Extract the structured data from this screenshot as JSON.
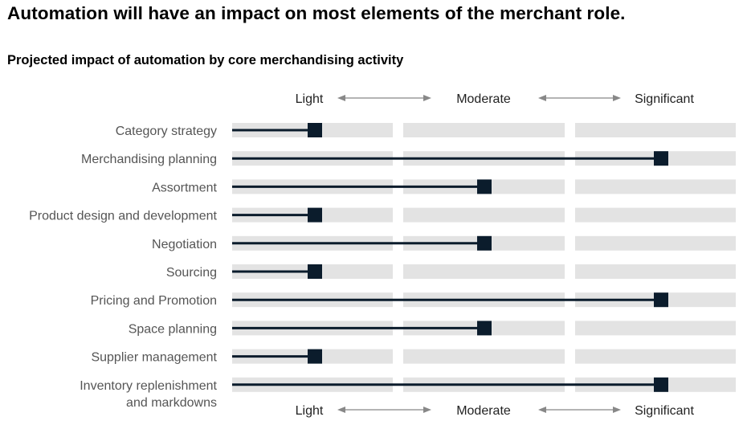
{
  "title": "Automation will have an impact on most elements of the merchant role.",
  "chart_data": {
    "type": "bar",
    "title": "Projected impact of automation by core merchandising activity",
    "scale_labels": [
      "Light",
      "Moderate",
      "Significant"
    ],
    "categories": [
      [
        "Category strategy"
      ],
      [
        "Merchandising planning"
      ],
      [
        "Assortment"
      ],
      [
        "Product design and development"
      ],
      [
        "Negotiation"
      ],
      [
        "Sourcing"
      ],
      [
        "Pricing and Promotion"
      ],
      [
        "Space planning"
      ],
      [
        "Supplier management"
      ],
      [
        "Inventory replenishment",
        "and markdowns"
      ]
    ],
    "values": [
      "Light",
      "Significant",
      "Moderate",
      "Light",
      "Moderate",
      "Light",
      "Significant",
      "Moderate",
      "Light",
      "Significant"
    ],
    "highlighted_category_index": 6,
    "colors": {
      "track": "#e3e3e3",
      "line": "#0b1c2c",
      "highlight_text": "#e8762c",
      "label_text": "#555555",
      "arrow": "#888888"
    }
  }
}
